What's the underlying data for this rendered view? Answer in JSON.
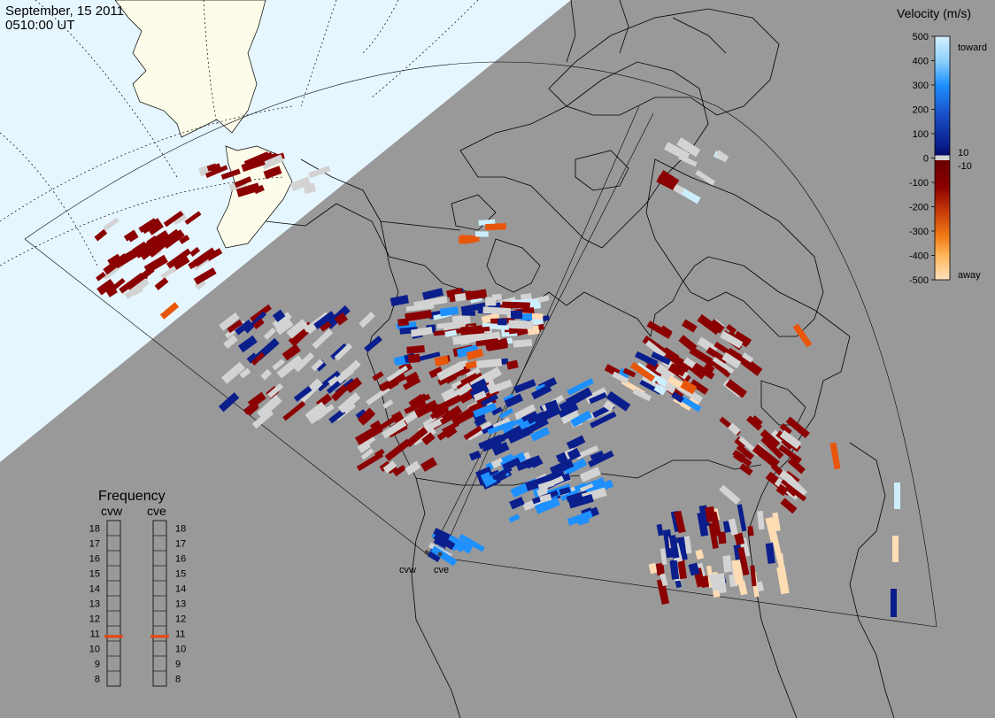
{
  "header": {
    "date": "September, 15 2011",
    "time": "0510:00 UT"
  },
  "velocity_scale": {
    "title": "Velocity (m/s)",
    "ticks": [
      "500",
      "400",
      "300",
      "200",
      "100",
      "0",
      "-100",
      "-200",
      "-300",
      "-400",
      "-500"
    ],
    "label_toward": "toward",
    "label_away": "away",
    "inner_pos": "10",
    "inner_neg": "-10",
    "colors": {
      "toward_light": "#cdeefd",
      "toward_mid": "#1e90ff",
      "toward_dark": "#0a1e8c",
      "ground_scatter": "#d3d3d3",
      "away_dark": "#8b0000",
      "away_mid": "#e8560a",
      "away_light": "#ffdcb4"
    }
  },
  "frequency_panel": {
    "title": "Frequency",
    "radars": [
      "cvw",
      "cve"
    ],
    "levels": [
      "18",
      "17",
      "16",
      "15",
      "14",
      "13",
      "12",
      "11",
      "10",
      "9",
      "8"
    ],
    "cvw_mhz": 10.8,
    "cve_mhz": 10.8,
    "marker_color": "#e8460a"
  },
  "map": {
    "radar_sites": [
      "cvw",
      "cve"
    ],
    "colors": {
      "night_ocean": "#e6f6ff",
      "night_land": "#fdfbe9",
      "day": "#999999"
    }
  }
}
